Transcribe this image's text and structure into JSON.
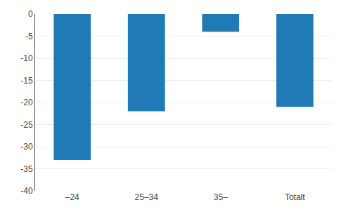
{
  "chart_data": {
    "type": "bar",
    "categories": [
      "–24",
      "25–34",
      "35–",
      "Totalt"
    ],
    "values": [
      -33,
      -22,
      -4,
      -21
    ],
    "color": "#1f7ab5",
    "ylim": [
      -40,
      0
    ],
    "yticks": [
      0,
      -5,
      -10,
      -15,
      -20,
      -25,
      -30,
      -35,
      -40
    ],
    "grid": true
  }
}
